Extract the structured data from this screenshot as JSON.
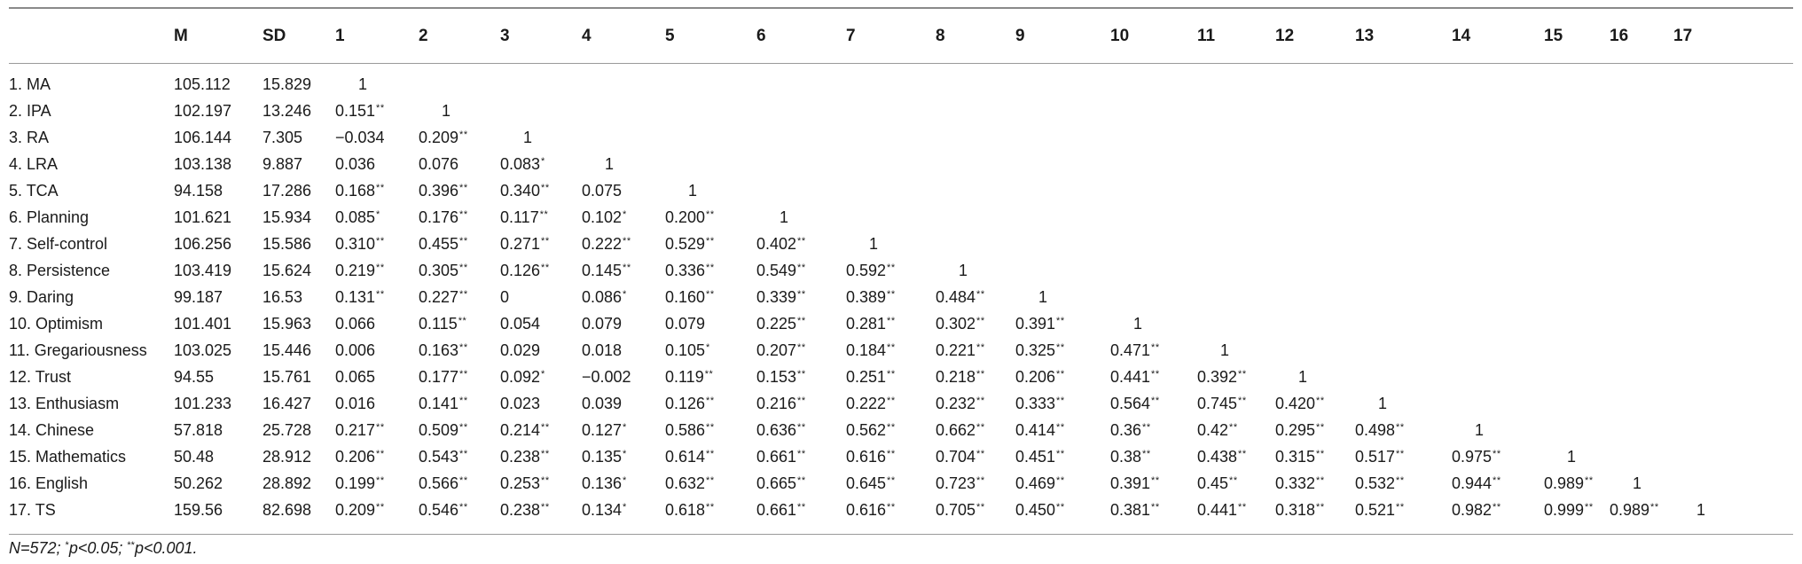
{
  "table": {
    "headers": [
      "",
      "M",
      "SD",
      "1",
      "2",
      "3",
      "4",
      "5",
      "6",
      "7",
      "8",
      "9",
      "10",
      "11",
      "12",
      "13",
      "14",
      "15",
      "16",
      "17"
    ],
    "rows": [
      {
        "label": "1. MA",
        "m": "105.112",
        "sd": "15.829",
        "cells": [
          [
            "1",
            ""
          ]
        ]
      },
      {
        "label": "2. IPA",
        "m": "102.197",
        "sd": "13.246",
        "cells": [
          [
            "0.151",
            "**"
          ],
          [
            "1",
            ""
          ]
        ]
      },
      {
        "label": "3. RA",
        "m": "106.144",
        "sd": "7.305",
        "cells": [
          [
            "−0.034",
            ""
          ],
          [
            "0.209",
            "**"
          ],
          [
            "1",
            ""
          ]
        ]
      },
      {
        "label": "4. LRA",
        "m": "103.138",
        "sd": "9.887",
        "cells": [
          [
            "0.036",
            ""
          ],
          [
            "0.076",
            ""
          ],
          [
            "0.083",
            "*"
          ],
          [
            "1",
            ""
          ]
        ]
      },
      {
        "label": "5. TCA",
        "m": "94.158",
        "sd": "17.286",
        "cells": [
          [
            "0.168",
            "**"
          ],
          [
            "0.396",
            "**"
          ],
          [
            "0.340",
            "**"
          ],
          [
            "0.075",
            ""
          ],
          [
            "1",
            ""
          ]
        ]
      },
      {
        "label": "6. Planning",
        "m": "101.621",
        "sd": "15.934",
        "cells": [
          [
            "0.085",
            "*"
          ],
          [
            "0.176",
            "**"
          ],
          [
            "0.117",
            "**"
          ],
          [
            "0.102",
            "*"
          ],
          [
            "0.200",
            "**"
          ],
          [
            "1",
            ""
          ]
        ]
      },
      {
        "label": "7. Self-control",
        "m": "106.256",
        "sd": "15.586",
        "cells": [
          [
            "0.310",
            "**"
          ],
          [
            "0.455",
            "**"
          ],
          [
            "0.271",
            "**"
          ],
          [
            "0.222",
            "**"
          ],
          [
            "0.529",
            "**"
          ],
          [
            "0.402",
            "**"
          ],
          [
            "1",
            ""
          ]
        ]
      },
      {
        "label": "8. Persistence",
        "m": "103.419",
        "sd": "15.624",
        "cells": [
          [
            "0.219",
            "**"
          ],
          [
            "0.305",
            "**"
          ],
          [
            "0.126",
            "**"
          ],
          [
            "0.145",
            "**"
          ],
          [
            "0.336",
            "**"
          ],
          [
            "0.549",
            "**"
          ],
          [
            "0.592",
            "**"
          ],
          [
            "1",
            ""
          ]
        ]
      },
      {
        "label": "9. Daring",
        "m": "99.187",
        "sd": "16.53",
        "cells": [
          [
            "0.131",
            "**"
          ],
          [
            "0.227",
            "**"
          ],
          [
            "0",
            ""
          ],
          [
            "0.086",
            "*"
          ],
          [
            "0.160",
            "**"
          ],
          [
            "0.339",
            "**"
          ],
          [
            "0.389",
            "**"
          ],
          [
            "0.484",
            "**"
          ],
          [
            "1",
            ""
          ]
        ]
      },
      {
        "label": "10. Optimism",
        "m": "101.401",
        "sd": "15.963",
        "cells": [
          [
            "0.066",
            ""
          ],
          [
            "0.115",
            "**"
          ],
          [
            "0.054",
            ""
          ],
          [
            "0.079",
            ""
          ],
          [
            "0.079",
            ""
          ],
          [
            "0.225",
            "**"
          ],
          [
            "0.281",
            "**"
          ],
          [
            "0.302",
            "**"
          ],
          [
            "0.391",
            "**"
          ],
          [
            "1",
            ""
          ]
        ]
      },
      {
        "label": "11. Gregariousness",
        "m": "103.025",
        "sd": "15.446",
        "cells": [
          [
            "0.006",
            ""
          ],
          [
            "0.163",
            "**"
          ],
          [
            "0.029",
            ""
          ],
          [
            "0.018",
            ""
          ],
          [
            "0.105",
            "*"
          ],
          [
            "0.207",
            "**"
          ],
          [
            "0.184",
            "**"
          ],
          [
            "0.221",
            "**"
          ],
          [
            "0.325",
            "**"
          ],
          [
            "0.471",
            "**"
          ],
          [
            "1",
            ""
          ]
        ]
      },
      {
        "label": "12. Trust",
        "m": "94.55",
        "sd": "15.761",
        "cells": [
          [
            "0.065",
            ""
          ],
          [
            "0.177",
            "**"
          ],
          [
            "0.092",
            "*"
          ],
          [
            "−0.002",
            ""
          ],
          [
            "0.119",
            "**"
          ],
          [
            "0.153",
            "**"
          ],
          [
            "0.251",
            "**"
          ],
          [
            "0.218",
            "**"
          ],
          [
            "0.206",
            "**"
          ],
          [
            "0.441",
            "**"
          ],
          [
            "0.392",
            "**"
          ],
          [
            "1",
            ""
          ]
        ]
      },
      {
        "label": "13. Enthusiasm",
        "m": "101.233",
        "sd": "16.427",
        "cells": [
          [
            "0.016",
            ""
          ],
          [
            "0.141",
            "**"
          ],
          [
            "0.023",
            ""
          ],
          [
            "0.039",
            ""
          ],
          [
            "0.126",
            "**"
          ],
          [
            "0.216",
            "**"
          ],
          [
            "0.222",
            "**"
          ],
          [
            "0.232",
            "**"
          ],
          [
            "0.333",
            "**"
          ],
          [
            "0.564",
            "**"
          ],
          [
            "0.745",
            "**"
          ],
          [
            "0.420",
            "**"
          ],
          [
            "1",
            ""
          ]
        ]
      },
      {
        "label": "14. Chinese",
        "m": "57.818",
        "sd": "25.728",
        "cells": [
          [
            "0.217",
            "**"
          ],
          [
            "0.509",
            "**"
          ],
          [
            "0.214",
            "**"
          ],
          [
            "0.127",
            "*"
          ],
          [
            "0.586",
            "**"
          ],
          [
            "0.636",
            "**"
          ],
          [
            "0.562",
            "**"
          ],
          [
            "0.662",
            "**"
          ],
          [
            "0.414",
            "**"
          ],
          [
            "0.36",
            "**"
          ],
          [
            "0.42",
            "**"
          ],
          [
            "0.295",
            "**"
          ],
          [
            "0.498",
            "**"
          ],
          [
            "1",
            ""
          ]
        ]
      },
      {
        "label": "15. Mathematics",
        "m": "50.48",
        "sd": "28.912",
        "cells": [
          [
            "0.206",
            "**"
          ],
          [
            "0.543",
            "**"
          ],
          [
            "0.238",
            "**"
          ],
          [
            "0.135",
            "*"
          ],
          [
            "0.614",
            "**"
          ],
          [
            "0.661",
            "**"
          ],
          [
            "0.616",
            "**"
          ],
          [
            "0.704",
            "**"
          ],
          [
            "0.451",
            "**"
          ],
          [
            "0.38",
            "**"
          ],
          [
            "0.438",
            "**"
          ],
          [
            "0.315",
            "**"
          ],
          [
            "0.517",
            "**"
          ],
          [
            "0.975",
            "**"
          ],
          [
            "1",
            ""
          ]
        ]
      },
      {
        "label": "16. English",
        "m": "50.262",
        "sd": "28.892",
        "cells": [
          [
            "0.199",
            "**"
          ],
          [
            "0.566",
            "**"
          ],
          [
            "0.253",
            "**"
          ],
          [
            "0.136",
            "*"
          ],
          [
            "0.632",
            "**"
          ],
          [
            "0.665",
            "**"
          ],
          [
            "0.645",
            "**"
          ],
          [
            "0.723",
            "**"
          ],
          [
            "0.469",
            "**"
          ],
          [
            "0.391",
            "**"
          ],
          [
            "0.45",
            "**"
          ],
          [
            "0.332",
            "**"
          ],
          [
            "0.532",
            "**"
          ],
          [
            "0.944",
            "**"
          ],
          [
            "0.989",
            "**"
          ],
          [
            "1",
            ""
          ]
        ]
      },
      {
        "label": "17. TS",
        "m": "159.56",
        "sd": "82.698",
        "cells": [
          [
            "0.209",
            "**"
          ],
          [
            "0.546",
            "**"
          ],
          [
            "0.238",
            "**"
          ],
          [
            "0.134",
            "*"
          ],
          [
            "0.618",
            "**"
          ],
          [
            "0.661",
            "**"
          ],
          [
            "0.616",
            "**"
          ],
          [
            "0.705",
            "**"
          ],
          [
            "0.450",
            "**"
          ],
          [
            "0.381",
            "**"
          ],
          [
            "0.441",
            "**"
          ],
          [
            "0.318",
            "**"
          ],
          [
            "0.521",
            "**"
          ],
          [
            "0.982",
            "**"
          ],
          [
            "0.999",
            "**"
          ],
          [
            "0.989",
            "**"
          ],
          [
            "1",
            ""
          ]
        ]
      }
    ]
  },
  "note": {
    "n_text": "N=572; ",
    "sig1_sup": "*",
    "sig1_text": "p<0.05; ",
    "sig2_sup": "**",
    "sig2_text": "p<0.001."
  }
}
